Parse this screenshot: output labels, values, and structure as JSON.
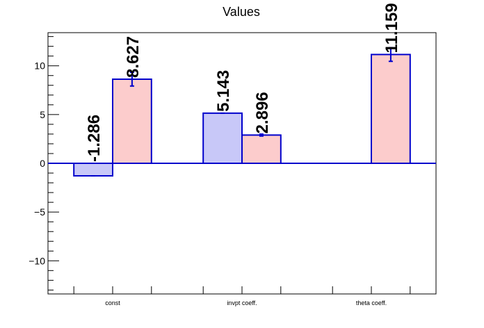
{
  "chart_data": {
    "type": "bar",
    "title": "Values",
    "xlabel": "",
    "ylabel": "",
    "ylim": [
      -13.4,
      13.4
    ],
    "yticks": [
      -10,
      -5,
      0,
      5,
      10
    ],
    "categories": [
      "const",
      "invpt coeff.",
      "theta coeff."
    ],
    "series": [
      {
        "color": "#c8c8f8",
        "values": [
          -1.286,
          5.143,
          null
        ],
        "labels": [
          "-1.286",
          "5.143",
          ""
        ],
        "errors": [
          0,
          0,
          0
        ]
      },
      {
        "color": "#fccccc",
        "values": [
          8.627,
          2.896,
          11.159
        ],
        "labels": [
          "8.627",
          "2.896",
          "11.159"
        ],
        "errors": [
          0.7,
          0.1,
          0.7
        ]
      }
    ],
    "edge_color": "#0000cc",
    "grid": false,
    "legend": "none"
  }
}
